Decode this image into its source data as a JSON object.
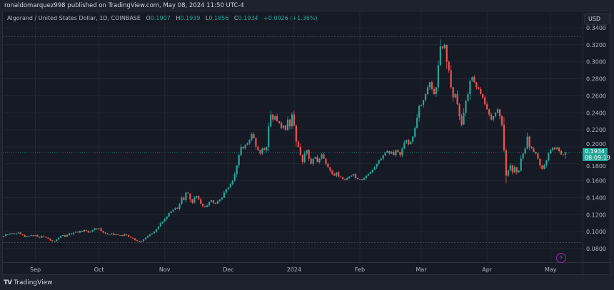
{
  "header": {
    "published": "ronaldomarquez998 published on TradingView.com, May 08, 2024 11:50 UTC-4"
  },
  "legend": {
    "symbol": "Algorand / United States Dollar, 1D, COINBASE",
    "o_label": "O",
    "o": "0.1907",
    "h_label": "H",
    "h": "0.1939",
    "l_label": "L",
    "l": "0.1856",
    "c_label": "C",
    "c": "0.1934",
    "change": "+0.0026 (+1.36%)"
  },
  "price_axis": {
    "currency": "USD",
    "current_price": "0.1934",
    "countdown": "08:09:19"
  },
  "footer": {
    "brand": "TradingView"
  },
  "colors": {
    "up": "#26a69a",
    "down": "#ef5350",
    "background": "#161a25",
    "outer": "#1e222d"
  },
  "icons": {
    "bolt": "lightning-icon",
    "logo": "tradingview-logo"
  },
  "chart_data": {
    "type": "candlestick",
    "interval": "1D",
    "ylim": [
      0.07,
      0.345
    ],
    "y_ticks": [
      "0.3400",
      "0.3200",
      "0.3000",
      "0.2800",
      "0.2600",
      "0.2400",
      "0.2200",
      "0.2000",
      "0.1800",
      "0.1600",
      "0.1400",
      "0.1200",
      "0.1000",
      "0.0800"
    ],
    "x_ticks": [
      {
        "label": "Sep",
        "day": 15
      },
      {
        "label": "Oct",
        "day": 45
      },
      {
        "label": "Nov",
        "day": 76
      },
      {
        "label": "Dec",
        "day": 106
      },
      {
        "label": "2024",
        "day": 137
      },
      {
        "label": "Feb",
        "day": 168
      },
      {
        "label": "Mar",
        "day": 197
      },
      {
        "label": "Apr",
        "day": 228
      },
      {
        "label": "May",
        "day": 258
      }
    ],
    "high_line": 0.3296,
    "low_line": 0.0872,
    "last_candle": {
      "open": 0.1907,
      "high": 0.1939,
      "low": 0.1856,
      "close": 0.1934
    },
    "daily_closes": [
      0.095,
      0.097,
      0.097,
      0.098,
      0.098,
      0.097,
      0.098,
      0.099,
      0.097,
      0.096,
      0.094,
      0.095,
      0.095,
      0.096,
      0.095,
      0.096,
      0.094,
      0.093,
      0.095,
      0.094,
      0.093,
      0.092,
      0.09,
      0.089,
      0.089,
      0.091,
      0.093,
      0.095,
      0.096,
      0.094,
      0.096,
      0.098,
      0.097,
      0.099,
      0.1,
      0.099,
      0.101,
      0.1,
      0.102,
      0.101,
      0.099,
      0.1,
      0.102,
      0.104,
      0.103,
      0.104,
      0.101,
      0.099,
      0.098,
      0.097,
      0.097,
      0.098,
      0.096,
      0.097,
      0.096,
      0.096,
      0.095,
      0.097,
      0.096,
      0.094,
      0.093,
      0.092,
      0.09,
      0.089,
      0.088,
      0.089,
      0.091,
      0.093,
      0.095,
      0.097,
      0.098,
      0.1,
      0.103,
      0.106,
      0.11,
      0.112,
      0.115,
      0.118,
      0.122,
      0.124,
      0.126,
      0.128,
      0.127,
      0.133,
      0.14,
      0.137,
      0.146,
      0.145,
      0.138,
      0.134,
      0.14,
      0.142,
      0.138,
      0.133,
      0.13,
      0.129,
      0.131,
      0.135,
      0.137,
      0.134,
      0.133,
      0.136,
      0.138,
      0.14,
      0.146,
      0.15,
      0.152,
      0.156,
      0.16,
      0.168,
      0.178,
      0.19,
      0.2,
      0.198,
      0.202,
      0.204,
      0.208,
      0.215,
      0.21,
      0.2,
      0.196,
      0.192,
      0.198,
      0.196,
      0.2,
      0.224,
      0.238,
      0.232,
      0.236,
      0.23,
      0.228,
      0.222,
      0.225,
      0.22,
      0.232,
      0.224,
      0.238,
      0.225,
      0.206,
      0.2,
      0.19,
      0.182,
      0.192,
      0.196,
      0.186,
      0.18,
      0.186,
      0.188,
      0.182,
      0.186,
      0.191,
      0.186,
      0.18,
      0.176,
      0.172,
      0.168,
      0.166,
      0.17,
      0.165,
      0.164,
      0.162,
      0.161,
      0.163,
      0.165,
      0.166,
      0.168,
      0.163,
      0.162,
      0.162,
      0.161,
      0.163,
      0.166,
      0.168,
      0.17,
      0.173,
      0.176,
      0.18,
      0.184,
      0.186,
      0.19,
      0.193,
      0.195,
      0.192,
      0.194,
      0.19,
      0.196,
      0.194,
      0.19,
      0.198,
      0.205,
      0.208,
      0.203,
      0.206,
      0.212,
      0.222,
      0.234,
      0.248,
      0.249,
      0.255,
      0.262,
      0.27,
      0.276,
      0.268,
      0.262,
      0.27,
      0.296,
      0.318,
      0.316,
      0.32,
      0.3,
      0.29,
      0.27,
      0.258,
      0.262,
      0.25,
      0.236,
      0.226,
      0.24,
      0.254,
      0.262,
      0.278,
      0.282,
      0.276,
      0.27,
      0.268,
      0.262,
      0.258,
      0.25,
      0.244,
      0.238,
      0.232,
      0.236,
      0.24,
      0.244,
      0.236,
      0.226,
      0.196,
      0.166,
      0.172,
      0.178,
      0.17,
      0.176,
      0.17,
      0.172,
      0.186,
      0.192,
      0.198,
      0.212,
      0.2,
      0.198,
      0.194,
      0.192,
      0.186,
      0.178,
      0.174,
      0.178,
      0.184,
      0.192,
      0.196,
      0.199,
      0.197,
      0.199,
      0.195,
      0.191,
      0.1907
    ]
  }
}
